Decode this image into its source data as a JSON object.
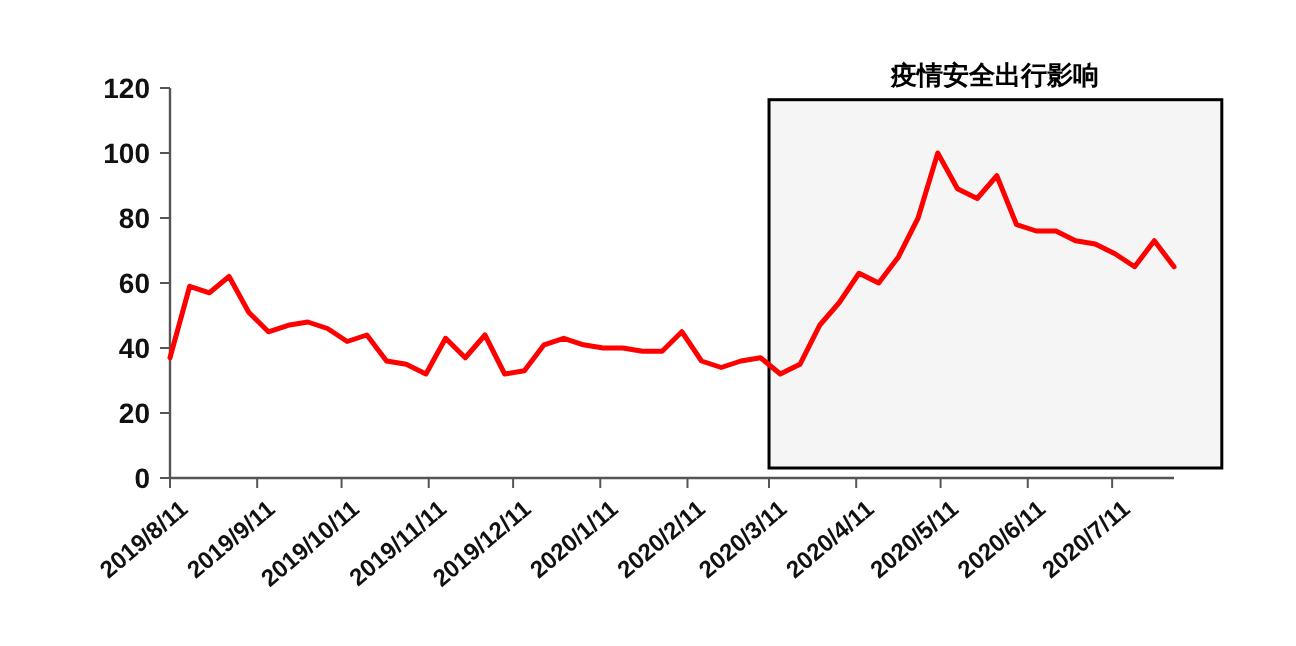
{
  "chart_data": {
    "type": "line",
    "x": [
      "2019-08-11",
      "2019-08-18",
      "2019-08-25",
      "2019-09-01",
      "2019-09-08",
      "2019-09-15",
      "2019-09-22",
      "2019-09-29",
      "2019-10-06",
      "2019-10-13",
      "2019-10-20",
      "2019-10-27",
      "2019-11-03",
      "2019-11-10",
      "2019-11-17",
      "2019-11-24",
      "2019-12-01",
      "2019-12-08",
      "2019-12-15",
      "2019-12-22",
      "2019-12-29",
      "2020-01-05",
      "2020-01-12",
      "2020-01-19",
      "2020-01-26",
      "2020-02-02",
      "2020-02-09",
      "2020-02-16",
      "2020-02-23",
      "2020-03-01",
      "2020-03-08",
      "2020-03-15",
      "2020-03-22",
      "2020-03-29",
      "2020-04-05",
      "2020-04-12",
      "2020-04-19",
      "2020-04-26",
      "2020-05-03",
      "2020-05-10",
      "2020-05-17",
      "2020-05-24",
      "2020-05-31",
      "2020-06-07",
      "2020-06-14",
      "2020-06-21",
      "2020-06-28",
      "2020-07-05",
      "2020-07-12",
      "2020-07-19",
      "2020-07-26",
      "2020-08-02"
    ],
    "series": [
      {
        "color": "#ff0000",
        "values": [
          37,
          59,
          57,
          62,
          51,
          45,
          47,
          48,
          46,
          42,
          44,
          36,
          35,
          32,
          43,
          37,
          44,
          32,
          33,
          41,
          43,
          41,
          40,
          40,
          39,
          39,
          45,
          36,
          34,
          36,
          37,
          32,
          35,
          47,
          54,
          63,
          60,
          68,
          80,
          100,
          89,
          86,
          93,
          78,
          76,
          76,
          73,
          72,
          69,
          65,
          73,
          65
        ]
      }
    ],
    "xlim": [
      "2019-08-11",
      "2020-08-02"
    ],
    "xticks": [
      {
        "value": "2019-08-11",
        "label": "2019/8/11"
      },
      {
        "value": "2019-09-11",
        "label": "2019/9/11"
      },
      {
        "value": "2019-10-11",
        "label": "2019/10/11"
      },
      {
        "value": "2019-11-11",
        "label": "2019/11/11"
      },
      {
        "value": "2019-12-11",
        "label": "2019/12/11"
      },
      {
        "value": "2020-01-11",
        "label": "2020/1/11"
      },
      {
        "value": "2020-02-11",
        "label": "2020/2/11"
      },
      {
        "value": "2020-03-11",
        "label": "2020/3/11"
      },
      {
        "value": "2020-04-11",
        "label": "2020/4/11"
      },
      {
        "value": "2020-05-11",
        "label": "2020/5/11"
      },
      {
        "value": "2020-06-11",
        "label": "2020/6/11"
      },
      {
        "value": "2020-07-11",
        "label": "2020/7/11"
      }
    ],
    "ylim": [
      0,
      120
    ],
    "yticks": [
      0,
      20,
      40,
      60,
      80,
      100,
      120
    ],
    "bands": [
      {
        "axis": "x",
        "from": "2020-03-11",
        "to": "2020-08-19",
        "label": "疫情安全出行影响",
        "color": "#000000"
      }
    ],
    "grid": false,
    "marker": "none",
    "line_style": "solid"
  }
}
